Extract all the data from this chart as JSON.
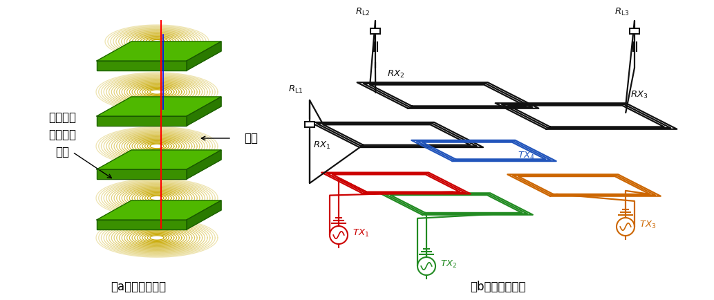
{
  "title_a": "（a）多层线圈式",
  "title_b": "（b）线圈阵列式",
  "label_resin": "环氧树脂\n玻璃纤维\n织物",
  "label_coil": "线圈",
  "bg_color": "#ffffff",
  "coil_color": "#c8a800",
  "plate_color_top": "#4fb800",
  "plate_color_front": "#3a9000",
  "plate_color_right": "#2a7a00",
  "plate_edge": "#1a5a00",
  "circuit_black": "#111111",
  "circuit_red": "#cc0000",
  "circuit_blue": "#2255bb",
  "circuit_green": "#228b22",
  "circuit_orange": "#cc6600",
  "font_size_label": 12,
  "font_size_caption": 12
}
